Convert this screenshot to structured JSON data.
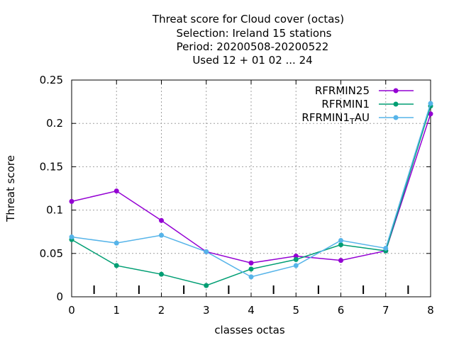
{
  "chart_data": {
    "type": "line",
    "title_lines": [
      "Threat score  for Cloud cover (octas)",
      "Selection: Ireland     15 stations",
      "Period: 20200508-20200522",
      "Used  12 + 01 02 ... 24"
    ],
    "xlabel": "classes octas",
    "ylabel": "Threat score",
    "xlim": [
      0,
      8
    ],
    "ylim": [
      0,
      0.25
    ],
    "x_ticks": [
      "0",
      "1",
      "2",
      "3",
      "4",
      "5",
      "6",
      "7",
      "8"
    ],
    "y_ticks": [
      "0",
      "0.05",
      "0.1",
      "0.15",
      "0.2",
      "0.25"
    ],
    "grid": true,
    "legend_position": "top-right",
    "x": [
      0,
      1,
      2,
      3,
      4,
      5,
      6,
      7,
      8
    ],
    "series": [
      {
        "name": "RFRMIN25",
        "color": "#9400d3",
        "values": [
          0.11,
          0.122,
          0.088,
          0.052,
          0.039,
          0.047,
          0.042,
          0.053,
          0.211
        ]
      },
      {
        "name": "RFRMIN1",
        "color": "#009e73",
        "values": [
          0.066,
          0.036,
          0.026,
          0.013,
          0.032,
          0.043,
          0.06,
          0.053,
          0.22
        ]
      },
      {
        "name": "RFRMIN1_TAU",
        "color": "#56b4e9",
        "values": [
          0.069,
          0.062,
          0.071,
          0.052,
          0.023,
          0.036,
          0.065,
          0.056,
          0.223
        ]
      }
    ]
  }
}
